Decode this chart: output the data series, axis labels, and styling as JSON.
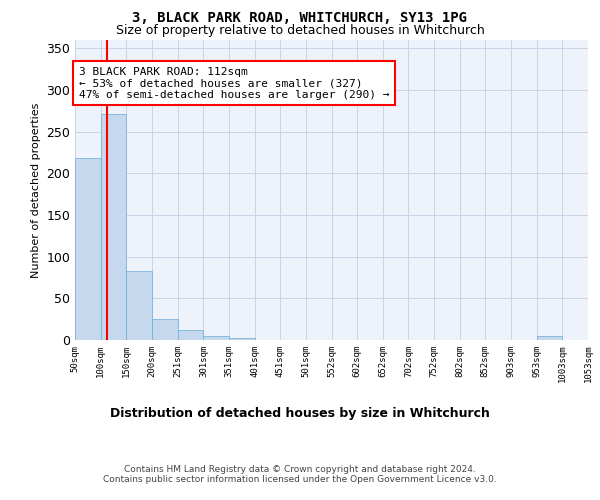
{
  "title": "3, BLACK PARK ROAD, WHITCHURCH, SY13 1PG",
  "subtitle": "Size of property relative to detached houses in Whitchurch",
  "xlabel": "Distribution of detached houses by size in Whitchurch",
  "ylabel": "Number of detached properties",
  "bar_edges": [
    50,
    100,
    150,
    200,
    251,
    301,
    351,
    401,
    451,
    501,
    552,
    602,
    652,
    702,
    752,
    802,
    852,
    903,
    953,
    1003,
    1053
  ],
  "bar_heights": [
    218,
    271,
    83,
    25,
    12,
    5,
    2,
    0,
    0,
    0,
    0,
    0,
    0,
    0,
    0,
    0,
    0,
    0,
    5,
    0,
    0
  ],
  "bar_color": "#c5d8ed",
  "bar_edge_color": "#6aaed6",
  "property_line_x": 112,
  "property_line_color": "red",
  "annotation_text": "3 BLACK PARK ROAD: 112sqm\n← 53% of detached houses are smaller (327)\n47% of semi-detached houses are larger (290) →",
  "annotation_box_color": "white",
  "annotation_box_edge_color": "red",
  "ylim": [
    0,
    360
  ],
  "yticks": [
    0,
    50,
    100,
    150,
    200,
    250,
    300,
    350
  ],
  "tick_labels": [
    "50sqm",
    "100sqm",
    "150sqm",
    "200sqm",
    "251sqm",
    "301sqm",
    "351sqm",
    "401sqm",
    "451sqm",
    "501sqm",
    "552sqm",
    "602sqm",
    "652sqm",
    "702sqm",
    "752sqm",
    "802sqm",
    "852sqm",
    "903sqm",
    "953sqm",
    "1003sqm",
    "1053sqm"
  ],
  "footer_line1": "Contains HM Land Registry data © Crown copyright and database right 2024.",
  "footer_line2": "Contains public sector information licensed under the Open Government Licence v3.0.",
  "background_color": "#eef2fa",
  "grid_color": "#c8d4e8",
  "title_fontsize": 10,
  "subtitle_fontsize": 9,
  "footer_fontsize": 6.5,
  "ylabel_fontsize": 8,
  "xlabel_fontsize": 9,
  "xtick_fontsize": 6.5,
  "ytick_fontsize": 9,
  "annot_fontsize": 8
}
